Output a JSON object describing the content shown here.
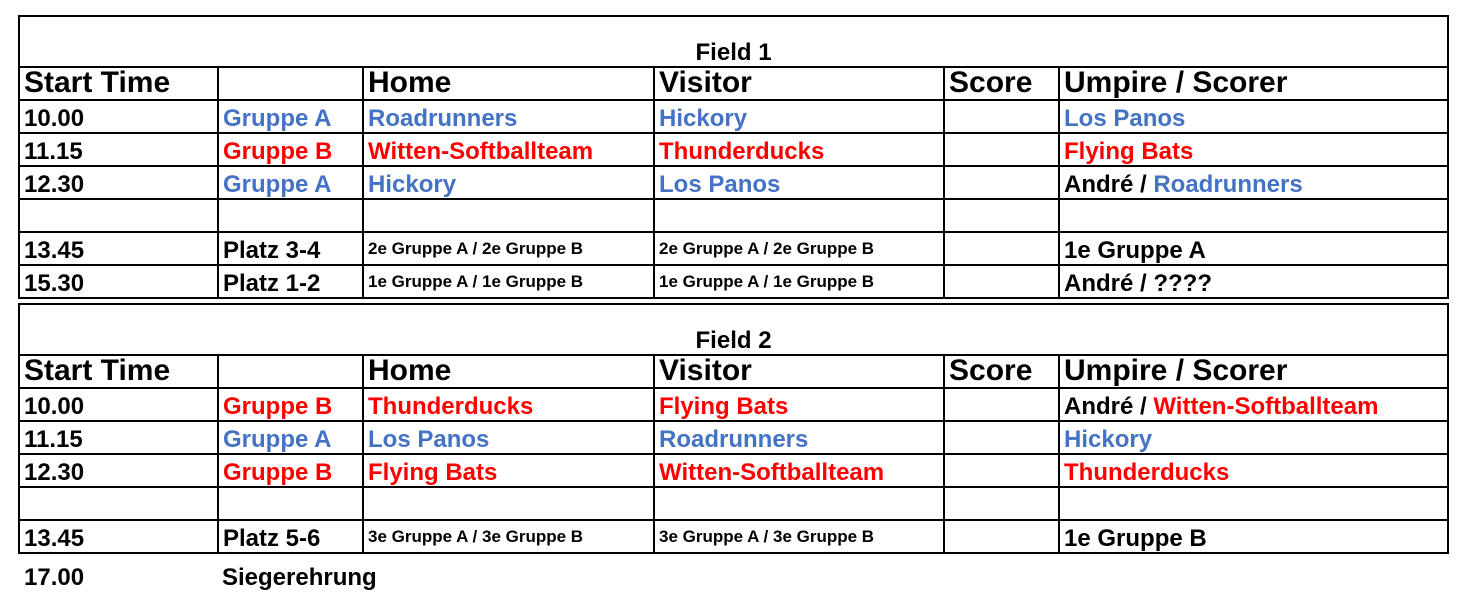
{
  "colors": {
    "blue": "#4472C4",
    "red": "#FF0000",
    "black": "#000000"
  },
  "columns": [
    "Start Time",
    "",
    "Home",
    "Visitor",
    "Score",
    "Umpire / Scorer"
  ],
  "fields": [
    {
      "title": "Field 1",
      "rows": [
        {
          "time": "10.00",
          "group": {
            "text": "Gruppe A",
            "color": "blue"
          },
          "home": {
            "text": "Roadrunners",
            "color": "blue"
          },
          "visitor": {
            "text": "Hickory",
            "color": "blue"
          },
          "score": "",
          "umpire": [
            {
              "text": "Los Panos",
              "color": "blue"
            }
          ]
        },
        {
          "time": "11.15",
          "group": {
            "text": "Gruppe B",
            "color": "red"
          },
          "home": {
            "text": "Witten-Softballteam",
            "color": "red"
          },
          "visitor": {
            "text": "Thunderducks",
            "color": "red"
          },
          "score": "",
          "umpire": [
            {
              "text": "Flying Bats",
              "color": "red"
            }
          ]
        },
        {
          "time": "12.30",
          "group": {
            "text": "Gruppe A",
            "color": "blue"
          },
          "home": {
            "text": "Hickory",
            "color": "blue"
          },
          "visitor": {
            "text": "Los Panos",
            "color": "blue"
          },
          "score": "",
          "umpire": [
            {
              "text": "André / ",
              "color": "black"
            },
            {
              "text": "Roadrunners",
              "color": "blue"
            }
          ]
        },
        {
          "time": "",
          "group": {
            "text": "",
            "color": "black"
          },
          "home": {
            "text": "",
            "color": "black"
          },
          "visitor": {
            "text": "",
            "color": "black"
          },
          "score": "",
          "umpire": []
        },
        {
          "time": "13.45",
          "group": {
            "text": "Platz 3-4",
            "color": "black"
          },
          "home": {
            "text": "2e Gruppe A / 2e Gruppe B",
            "color": "black",
            "small": true
          },
          "visitor": {
            "text": "2e Gruppe A / 2e Gruppe B",
            "color": "black",
            "small": true
          },
          "score": "",
          "umpire": [
            {
              "text": "1e Gruppe A",
              "color": "black"
            }
          ]
        },
        {
          "time": "15.30",
          "group": {
            "text": "Platz 1-2",
            "color": "black"
          },
          "home": {
            "text": "1e Gruppe A / 1e Gruppe B",
            "color": "black",
            "small": true
          },
          "visitor": {
            "text": "1e Gruppe A / 1e Gruppe B",
            "color": "black",
            "small": true
          },
          "score": "",
          "umpire": [
            {
              "text": "André / ????",
              "color": "black"
            }
          ]
        }
      ]
    },
    {
      "title": "Field 2",
      "rows": [
        {
          "time": "10.00",
          "group": {
            "text": "Gruppe B",
            "color": "red"
          },
          "home": {
            "text": "Thunderducks",
            "color": "red"
          },
          "visitor": {
            "text": "Flying Bats",
            "color": "red"
          },
          "score": "",
          "umpire": [
            {
              "text": "André / ",
              "color": "black"
            },
            {
              "text": "Witten-Softballteam",
              "color": "red"
            }
          ]
        },
        {
          "time": "11.15",
          "group": {
            "text": "Gruppe A",
            "color": "blue"
          },
          "home": {
            "text": "Los Panos",
            "color": "blue"
          },
          "visitor": {
            "text": "Roadrunners",
            "color": "blue"
          },
          "score": "",
          "umpire": [
            {
              "text": "Hickory",
              "color": "blue"
            }
          ]
        },
        {
          "time": "12.30",
          "group": {
            "text": "Gruppe B",
            "color": "red"
          },
          "home": {
            "text": "Flying Bats",
            "color": "red"
          },
          "visitor": {
            "text": "Witten-Softballteam",
            "color": "red"
          },
          "score": "",
          "umpire": [
            {
              "text": "Thunderducks",
              "color": "red"
            }
          ]
        },
        {
          "time": "",
          "group": {
            "text": "",
            "color": "black"
          },
          "home": {
            "text": "",
            "color": "black"
          },
          "visitor": {
            "text": "",
            "color": "black"
          },
          "score": "",
          "umpire": []
        },
        {
          "time": "13.45",
          "group": {
            "text": "Platz 5-6",
            "color": "black"
          },
          "home": {
            "text": "3e Gruppe A / 3e Gruppe B",
            "color": "black",
            "small": true
          },
          "visitor": {
            "text": "3e Gruppe A / 3e Gruppe B",
            "color": "black",
            "small": true
          },
          "score": "",
          "umpire": [
            {
              "text": "1e Gruppe B",
              "color": "black"
            }
          ]
        }
      ]
    }
  ],
  "footer": {
    "time": "17.00",
    "label": "Siegerehrung"
  }
}
